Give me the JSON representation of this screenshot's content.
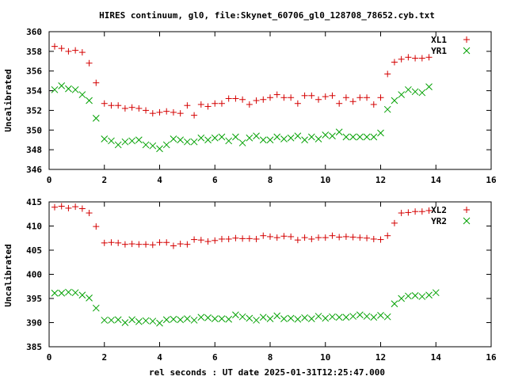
{
  "title": "HIRES continuum, gl0, file:Skynet_60706_gl0_128708_78652.cyb.txt",
  "xlabel": "rel seconds : UT date 2025-01-31T12:25:47.000",
  "colors": {
    "red": "#d40000",
    "green": "#00a000",
    "frame": "#000000"
  },
  "chart_data": [
    {
      "type": "scatter",
      "ylabel": "Uncalibrated",
      "xlim": [
        0,
        16
      ],
      "ylim": [
        346,
        360
      ],
      "xticks": [
        0,
        2,
        4,
        6,
        8,
        10,
        12,
        14,
        16
      ],
      "yticks": [
        346,
        348,
        350,
        352,
        354,
        356,
        358,
        360
      ],
      "legend_position": "top-right",
      "series": [
        {
          "name": "XL1",
          "marker": "plus",
          "color": "#d40000",
          "points": [
            [
              0.2,
              358.5
            ],
            [
              0.45,
              358.3
            ],
            [
              0.7,
              358.0
            ],
            [
              0.95,
              358.1
            ],
            [
              1.2,
              357.9
            ],
            [
              1.45,
              356.8
            ],
            [
              1.7,
              354.8
            ],
            [
              2.0,
              352.7
            ],
            [
              2.25,
              352.5
            ],
            [
              2.5,
              352.5
            ],
            [
              2.75,
              352.2
            ],
            [
              3.0,
              352.3
            ],
            [
              3.25,
              352.2
            ],
            [
              3.5,
              352.0
            ],
            [
              3.75,
              351.7
            ],
            [
              4.0,
              351.8
            ],
            [
              4.25,
              351.9
            ],
            [
              4.5,
              351.8
            ],
            [
              4.75,
              351.7
            ],
            [
              5.0,
              352.5
            ],
            [
              5.25,
              351.5
            ],
            [
              5.5,
              352.6
            ],
            [
              5.75,
              352.4
            ],
            [
              6.0,
              352.7
            ],
            [
              6.25,
              352.7
            ],
            [
              6.5,
              353.2
            ],
            [
              6.75,
              353.2
            ],
            [
              7.0,
              353.1
            ],
            [
              7.25,
              352.6
            ],
            [
              7.5,
              353.0
            ],
            [
              7.75,
              353.1
            ],
            [
              8.0,
              353.3
            ],
            [
              8.25,
              353.6
            ],
            [
              8.5,
              353.3
            ],
            [
              8.75,
              353.3
            ],
            [
              9.0,
              352.7
            ],
            [
              9.25,
              353.5
            ],
            [
              9.5,
              353.5
            ],
            [
              9.75,
              353.1
            ],
            [
              10.0,
              353.4
            ],
            [
              10.25,
              353.5
            ],
            [
              10.5,
              352.7
            ],
            [
              10.75,
              353.3
            ],
            [
              11.0,
              352.9
            ],
            [
              11.25,
              353.3
            ],
            [
              11.5,
              353.3
            ],
            [
              11.75,
              352.6
            ],
            [
              12.0,
              353.3
            ],
            [
              12.25,
              355.7
            ],
            [
              12.5,
              356.9
            ],
            [
              12.75,
              357.2
            ],
            [
              13.0,
              357.4
            ],
            [
              13.25,
              357.3
            ],
            [
              13.5,
              357.3
            ],
            [
              13.75,
              357.4
            ]
          ]
        },
        {
          "name": "YR1",
          "marker": "cross",
          "color": "#00a000",
          "points": [
            [
              0.2,
              354.1
            ],
            [
              0.45,
              354.5
            ],
            [
              0.7,
              354.2
            ],
            [
              0.95,
              354.1
            ],
            [
              1.2,
              353.6
            ],
            [
              1.45,
              353.0
            ],
            [
              1.7,
              351.2
            ],
            [
              2.0,
              349.1
            ],
            [
              2.25,
              348.9
            ],
            [
              2.5,
              348.5
            ],
            [
              2.75,
              348.8
            ],
            [
              3.0,
              348.9
            ],
            [
              3.25,
              349.0
            ],
            [
              3.5,
              348.5
            ],
            [
              3.75,
              348.4
            ],
            [
              4.0,
              348.1
            ],
            [
              4.25,
              348.5
            ],
            [
              4.5,
              349.1
            ],
            [
              4.75,
              349.0
            ],
            [
              5.0,
              348.8
            ],
            [
              5.25,
              348.8
            ],
            [
              5.5,
              349.2
            ],
            [
              5.75,
              349.0
            ],
            [
              6.0,
              349.2
            ],
            [
              6.25,
              349.3
            ],
            [
              6.5,
              348.9
            ],
            [
              6.75,
              349.3
            ],
            [
              7.0,
              348.7
            ],
            [
              7.25,
              349.2
            ],
            [
              7.5,
              349.4
            ],
            [
              7.75,
              349.0
            ],
            [
              8.0,
              349.0
            ],
            [
              8.25,
              349.3
            ],
            [
              8.5,
              349.1
            ],
            [
              8.75,
              349.2
            ],
            [
              9.0,
              349.4
            ],
            [
              9.25,
              349.0
            ],
            [
              9.5,
              349.3
            ],
            [
              9.75,
              349.1
            ],
            [
              10.0,
              349.5
            ],
            [
              10.25,
              349.4
            ],
            [
              10.5,
              349.8
            ],
            [
              10.75,
              349.3
            ],
            [
              11.0,
              349.3
            ],
            [
              11.25,
              349.3
            ],
            [
              11.5,
              349.3
            ],
            [
              11.75,
              349.3
            ],
            [
              12.0,
              349.7
            ],
            [
              12.25,
              352.1
            ],
            [
              12.5,
              353.0
            ],
            [
              12.75,
              353.6
            ],
            [
              13.0,
              354.1
            ],
            [
              13.25,
              353.9
            ],
            [
              13.5,
              353.8
            ],
            [
              13.75,
              354.4
            ]
          ]
        }
      ]
    },
    {
      "type": "scatter",
      "ylabel": "Uncalibrated",
      "xlim": [
        0,
        16
      ],
      "ylim": [
        385,
        415
      ],
      "xticks": [
        0,
        2,
        4,
        6,
        8,
        10,
        12,
        14,
        16
      ],
      "yticks": [
        385,
        390,
        395,
        400,
        405,
        410,
        415
      ],
      "legend_position": "top-right",
      "series": [
        {
          "name": "XL2",
          "marker": "plus",
          "color": "#d40000",
          "points": [
            [
              0.2,
              413.9
            ],
            [
              0.45,
              414.1
            ],
            [
              0.7,
              413.7
            ],
            [
              0.95,
              414.0
            ],
            [
              1.2,
              413.6
            ],
            [
              1.45,
              412.7
            ],
            [
              1.7,
              409.9
            ],
            [
              2.0,
              406.5
            ],
            [
              2.25,
              406.6
            ],
            [
              2.5,
              406.5
            ],
            [
              2.75,
              406.2
            ],
            [
              3.0,
              406.3
            ],
            [
              3.25,
              406.2
            ],
            [
              3.5,
              406.2
            ],
            [
              3.75,
              406.1
            ],
            [
              4.0,
              406.6
            ],
            [
              4.25,
              406.6
            ],
            [
              4.5,
              405.9
            ],
            [
              4.75,
              406.3
            ],
            [
              5.0,
              406.2
            ],
            [
              5.25,
              407.2
            ],
            [
              5.5,
              407.1
            ],
            [
              5.75,
              406.8
            ],
            [
              6.0,
              407.0
            ],
            [
              6.25,
              407.3
            ],
            [
              6.5,
              407.3
            ],
            [
              6.75,
              407.5
            ],
            [
              7.0,
              407.4
            ],
            [
              7.25,
              407.4
            ],
            [
              7.5,
              407.3
            ],
            [
              7.75,
              408.0
            ],
            [
              8.0,
              407.8
            ],
            [
              8.25,
              407.6
            ],
            [
              8.5,
              407.9
            ],
            [
              8.75,
              407.8
            ],
            [
              9.0,
              407.1
            ],
            [
              9.25,
              407.6
            ],
            [
              9.5,
              407.3
            ],
            [
              9.75,
              407.6
            ],
            [
              10.0,
              407.6
            ],
            [
              10.25,
              408.0
            ],
            [
              10.5,
              407.7
            ],
            [
              10.75,
              407.8
            ],
            [
              11.0,
              407.7
            ],
            [
              11.25,
              407.6
            ],
            [
              11.5,
              407.5
            ],
            [
              11.75,
              407.3
            ],
            [
              12.0,
              407.2
            ],
            [
              12.25,
              408.0
            ],
            [
              12.5,
              410.6
            ],
            [
              12.75,
              412.7
            ],
            [
              13.0,
              412.8
            ],
            [
              13.25,
              413.0
            ],
            [
              13.5,
              413.0
            ],
            [
              13.75,
              413.2
            ]
          ]
        },
        {
          "name": "YR2",
          "marker": "cross",
          "color": "#00a000",
          "points": [
            [
              0.2,
              396.1
            ],
            [
              0.45,
              396.1
            ],
            [
              0.7,
              396.3
            ],
            [
              0.95,
              396.2
            ],
            [
              1.2,
              395.7
            ],
            [
              1.45,
              395.1
            ],
            [
              1.7,
              393.0
            ],
            [
              2.0,
              390.5
            ],
            [
              2.25,
              390.5
            ],
            [
              2.5,
              390.6
            ],
            [
              2.75,
              390.0
            ],
            [
              3.0,
              390.6
            ],
            [
              3.25,
              390.2
            ],
            [
              3.5,
              390.4
            ],
            [
              3.75,
              390.3
            ],
            [
              4.0,
              389.9
            ],
            [
              4.25,
              390.6
            ],
            [
              4.5,
              390.7
            ],
            [
              4.75,
              390.6
            ],
            [
              5.0,
              390.8
            ],
            [
              5.25,
              390.5
            ],
            [
              5.5,
              391.1
            ],
            [
              5.75,
              391.0
            ],
            [
              6.0,
              390.8
            ],
            [
              6.25,
              390.8
            ],
            [
              6.5,
              390.7
            ],
            [
              6.75,
              391.6
            ],
            [
              7.0,
              391.2
            ],
            [
              7.25,
              390.9
            ],
            [
              7.5,
              390.5
            ],
            [
              7.75,
              391.1
            ],
            [
              8.0,
              390.8
            ],
            [
              8.25,
              391.4
            ],
            [
              8.5,
              390.8
            ],
            [
              8.75,
              390.9
            ],
            [
              9.0,
              390.7
            ],
            [
              9.25,
              391.0
            ],
            [
              9.5,
              390.8
            ],
            [
              9.75,
              391.3
            ],
            [
              10.0,
              390.9
            ],
            [
              10.25,
              391.2
            ],
            [
              10.5,
              391.1
            ],
            [
              10.75,
              391.1
            ],
            [
              11.0,
              391.3
            ],
            [
              11.25,
              391.6
            ],
            [
              11.5,
              391.3
            ],
            [
              11.75,
              391.1
            ],
            [
              12.0,
              391.5
            ],
            [
              12.25,
              391.2
            ],
            [
              12.5,
              393.9
            ],
            [
              12.75,
              395.0
            ],
            [
              13.0,
              395.5
            ],
            [
              13.25,
              395.6
            ],
            [
              13.5,
              395.4
            ],
            [
              13.75,
              395.7
            ],
            [
              14.0,
              396.2
            ]
          ]
        }
      ]
    }
  ]
}
